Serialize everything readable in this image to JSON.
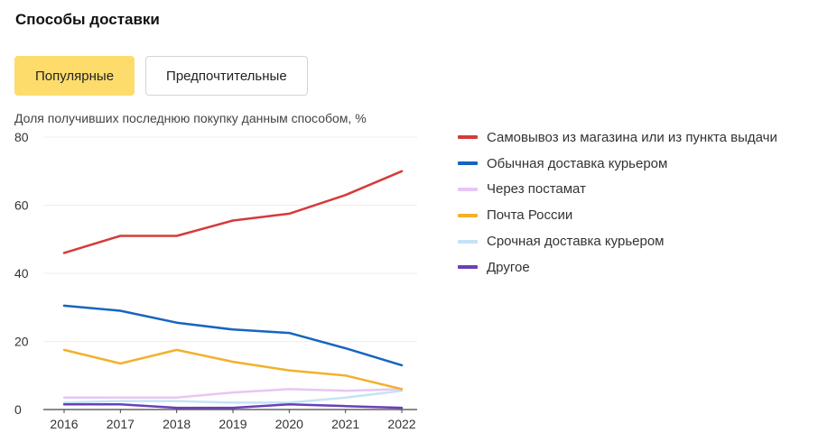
{
  "title": "Способы доставки",
  "tabs": [
    {
      "label": "Популярные",
      "active": true
    },
    {
      "label": "Предпочтительные",
      "active": false
    }
  ],
  "colors": {
    "active_tab": "#fddc6c",
    "grid": "#eeeeee",
    "axis": "#444444"
  },
  "chart_data": {
    "type": "line",
    "title": "Доля получивших последнюю покупку данным способом, %",
    "xlabel": "",
    "ylabel": "",
    "x": [
      "2016",
      "2017",
      "2018",
      "2019",
      "2020",
      "2021",
      "2022"
    ],
    "ylim": [
      0,
      80
    ],
    "yticks": [
      0,
      20,
      40,
      60,
      80
    ],
    "grid": true,
    "legend_position": "right",
    "series": [
      {
        "name": "Самовывоз из магазина или из пункта выдачи",
        "color": "#d63a3a",
        "values": [
          46,
          51,
          51,
          55.5,
          57.5,
          63,
          70
        ]
      },
      {
        "name": "Обычная доставка курьером",
        "color": "#1565c0",
        "values": [
          30.5,
          29,
          25.5,
          23.5,
          22.5,
          18,
          13
        ]
      },
      {
        "name": "Через постамат",
        "color": "#e7c6f4",
        "values": [
          3.5,
          3.5,
          3.5,
          5,
          6,
          5.5,
          6
        ]
      },
      {
        "name": "Почта России",
        "color": "#f2b12c",
        "values": [
          17.5,
          13.5,
          17.5,
          14,
          11.5,
          10,
          6
        ]
      },
      {
        "name": "Срочная доставка курьером",
        "color": "#c5e3f7",
        "values": [
          2,
          2.5,
          2.5,
          2,
          2,
          3.5,
          5.5
        ]
      },
      {
        "name": "Другое",
        "color": "#6a3fb8",
        "values": [
          1.5,
          1.5,
          0.5,
          0.5,
          1.5,
          1,
          0.5
        ]
      }
    ]
  }
}
